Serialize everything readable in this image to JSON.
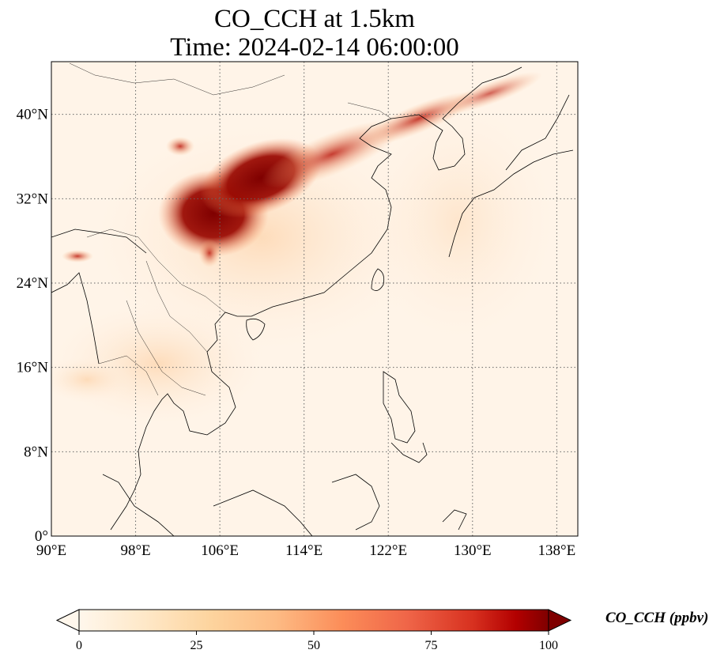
{
  "title_line1": "CO_CCH at 1.5km",
  "title_line2": "Time: 2024-02-14 06:00:00",
  "colorbar": {
    "label": "CO_CCH (ppbv)",
    "ticks": [
      "0",
      "25",
      "50",
      "75",
      "100"
    ],
    "tick_values": [
      0,
      25,
      50,
      75,
      100
    ],
    "min": 0,
    "max": 100,
    "extend": "both",
    "colormap": [
      "#fff5eb",
      "#fee6ce",
      "#fdd0a2",
      "#fdae6b",
      "#fd8d3c",
      "#f16913",
      "#d94801",
      "#a63603",
      "#7f2704"
    ]
  },
  "map": {
    "lon_range": [
      90,
      140
    ],
    "lat_range": [
      0,
      45
    ],
    "lon_ticks": [
      90,
      98,
      106,
      114,
      122,
      130,
      138
    ],
    "lon_tick_labels": [
      "90°E",
      "98°E",
      "106°E",
      "114°E",
      "122°E",
      "130°E",
      "138°E"
    ],
    "lat_ticks": [
      0,
      8,
      16,
      24,
      32,
      40
    ],
    "lat_tick_labels": [
      "0°",
      "8°N",
      "16°N",
      "24°N",
      "32°N",
      "40°N"
    ],
    "gridlines": "dotted",
    "coastlines": true,
    "borders": true
  }
}
